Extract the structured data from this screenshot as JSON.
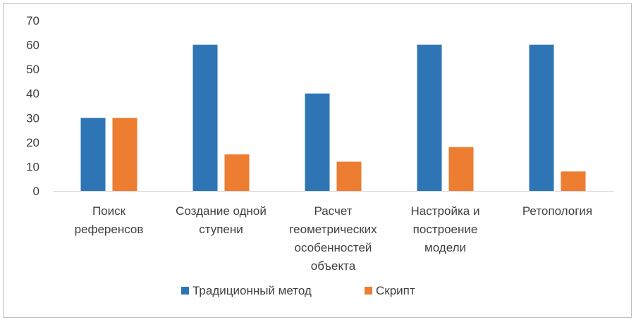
{
  "chart_data": {
    "type": "bar",
    "categories": [
      [
        "Поиск",
        "референсов"
      ],
      [
        "Создание одной",
        "ступени"
      ],
      [
        "Расчет",
        "геометрических",
        "особенностей",
        "объекта"
      ],
      [
        "Настройка и",
        "построение",
        "модели"
      ],
      [
        "Ретопология"
      ]
    ],
    "series": [
      {
        "name": "Традиционный метод",
        "color": "#2E75B6",
        "values": [
          30,
          60,
          40,
          60,
          60
        ]
      },
      {
        "name": "Скрипт",
        "color": "#ED7D31",
        "values": [
          30,
          15,
          12,
          18,
          8
        ]
      }
    ],
    "yticks": [
      0,
      10,
      20,
      30,
      40,
      50,
      60,
      70
    ],
    "ylim": [
      0,
      70
    ],
    "title": "",
    "xlabel": "",
    "ylabel": "",
    "legend": "bottom",
    "grid": false
  }
}
